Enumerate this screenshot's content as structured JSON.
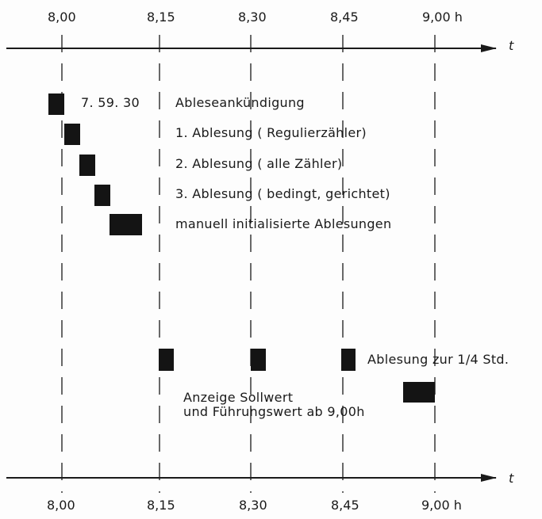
{
  "top_axis": {
    "ticks": [
      "8,00",
      "8,15",
      "8,30",
      "8,45",
      "9,00 h"
    ],
    "axis_label": "t"
  },
  "bottom_axis": {
    "ticks": [
      "8,00",
      "8,15",
      "8,30",
      "8,45",
      "9,00 h"
    ],
    "axis_label": "t"
  },
  "time_label": "7. 59. 30",
  "events": [
    "Ableseankündigung",
    "1. Ablesung ( Regulierzähler)",
    "2. Ablesung ( alle Zähler)",
    "3. Ablesung ( bedingt, gerichtet)",
    "manuell initialisierte Ablesungen"
  ],
  "quarter_label": "Ablesung zur 1/4 Std.",
  "setpoint_label": {
    "line1": "Anzeige Sollwert",
    "line2": "und Führungswert ab 9,00h"
  },
  "colors": {
    "ink": "#1a1a1a",
    "paper": "#fdfdfd"
  }
}
